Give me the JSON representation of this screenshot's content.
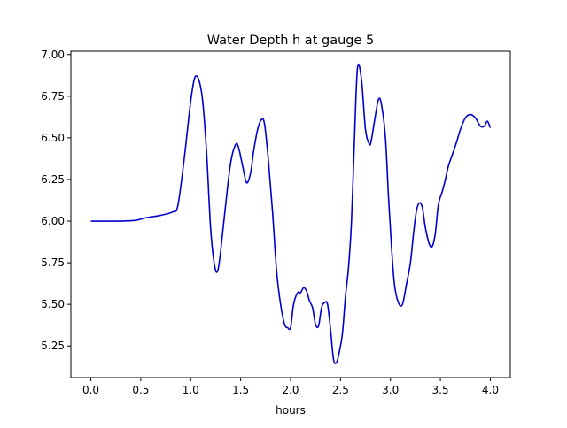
{
  "chart_data": {
    "type": "line",
    "title": "Water Depth h at gauge 5",
    "xlabel": "hours",
    "ylabel": "",
    "xlim": [
      -0.2,
      4.2
    ],
    "ylim": [
      5.06,
      7.02
    ],
    "xticks": [
      0.0,
      0.5,
      1.0,
      1.5,
      2.0,
      2.5,
      3.0,
      3.5,
      4.0
    ],
    "xtick_labels": [
      "0.0",
      "0.5",
      "1.0",
      "1.5",
      "2.0",
      "2.5",
      "3.0",
      "3.5",
      "4.0"
    ],
    "yticks": [
      5.25,
      5.5,
      5.75,
      6.0,
      6.25,
      6.5,
      6.75,
      7.0
    ],
    "ytick_labels": [
      "5.25",
      "5.50",
      "5.75",
      "6.00",
      "6.25",
      "6.50",
      "6.75",
      "7.00"
    ],
    "grid": false,
    "legend": "none",
    "colors": {
      "line": "#0000cc",
      "axes": "#000000",
      "background": "#ffffff"
    },
    "series": [
      {
        "x": [
          0.0,
          0.3,
          0.45,
          0.55,
          0.7,
          0.82,
          0.87,
          0.93,
          1.0,
          1.04,
          1.08,
          1.12,
          1.16,
          1.2,
          1.24,
          1.27,
          1.3,
          1.35,
          1.4,
          1.45,
          1.48,
          1.52,
          1.56,
          1.6,
          1.63,
          1.67,
          1.71,
          1.74,
          1.78,
          1.82,
          1.86,
          1.9,
          1.94,
          1.97,
          2.0,
          2.03,
          2.07,
          2.1,
          2.13,
          2.16,
          2.19,
          2.22,
          2.25,
          2.28,
          2.31,
          2.34,
          2.37,
          2.4,
          2.43,
          2.46,
          2.49,
          2.52,
          2.55,
          2.58,
          2.61,
          2.64,
          2.67,
          2.71,
          2.75,
          2.79,
          2.81,
          2.84,
          2.88,
          2.91,
          2.95,
          2.98,
          3.01,
          3.04,
          3.08,
          3.12,
          3.16,
          3.2,
          3.23,
          3.26,
          3.29,
          3.32,
          3.35,
          3.39,
          3.42,
          3.45,
          3.48,
          3.52,
          3.55,
          3.58,
          3.62,
          3.66,
          3.7,
          3.75,
          3.8,
          3.85,
          3.9,
          3.94,
          3.97,
          4.0
        ],
        "y": [
          6.0,
          6.0,
          6.005,
          6.02,
          6.035,
          6.055,
          6.09,
          6.35,
          6.72,
          6.86,
          6.85,
          6.72,
          6.4,
          5.95,
          5.73,
          5.7,
          5.82,
          6.1,
          6.35,
          6.46,
          6.44,
          6.33,
          6.23,
          6.29,
          6.42,
          6.55,
          6.61,
          6.58,
          6.35,
          6.05,
          5.7,
          5.5,
          5.38,
          5.36,
          5.36,
          5.5,
          5.57,
          5.57,
          5.6,
          5.58,
          5.52,
          5.48,
          5.38,
          5.37,
          5.48,
          5.51,
          5.5,
          5.35,
          5.17,
          5.15,
          5.22,
          5.33,
          5.55,
          5.72,
          6.0,
          6.5,
          6.92,
          6.85,
          6.55,
          6.46,
          6.49,
          6.6,
          6.73,
          6.7,
          6.5,
          6.15,
          5.85,
          5.62,
          5.51,
          5.5,
          5.62,
          5.75,
          5.92,
          6.06,
          6.11,
          6.08,
          5.96,
          5.86,
          5.85,
          5.93,
          6.1,
          6.18,
          6.25,
          6.33,
          6.4,
          6.47,
          6.55,
          6.62,
          6.64,
          6.62,
          6.57,
          6.57,
          6.6,
          6.56
        ]
      }
    ]
  }
}
